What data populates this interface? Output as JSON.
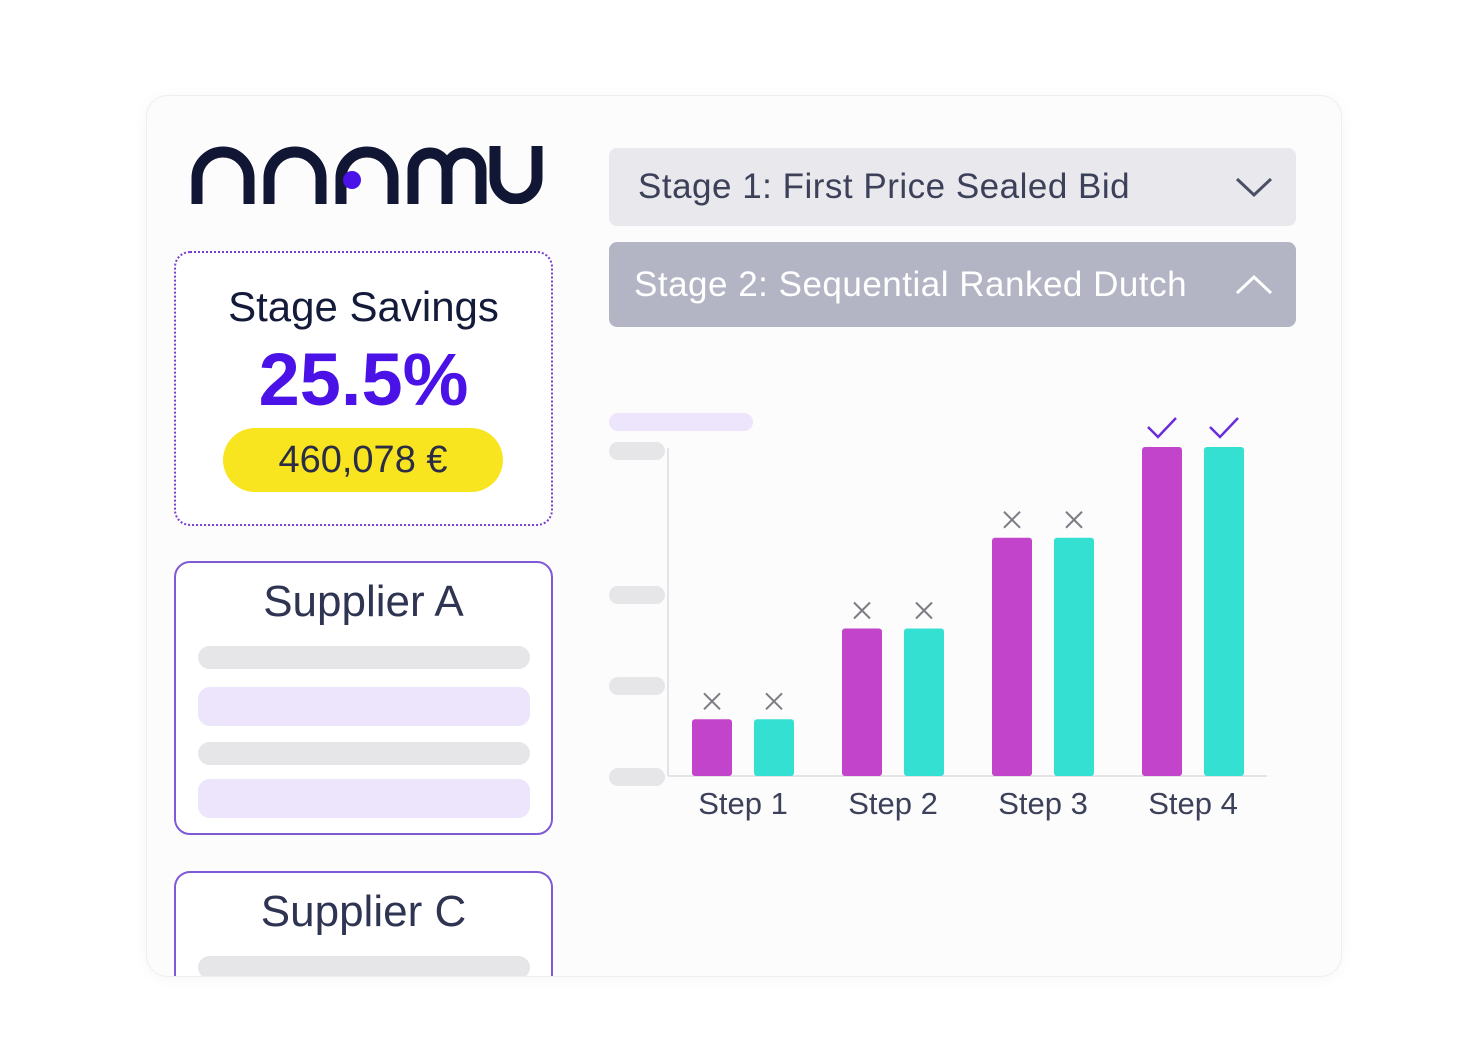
{
  "logo": {
    "text": "nnamu",
    "icon": "nnamu-logo",
    "accent_dot": "#4a12e6"
  },
  "savings": {
    "title": "Stage Savings",
    "percent": "25.5%",
    "amount": "460,078 €",
    "colors": {
      "percent": "#4a12e6",
      "pill": "#f9e51f",
      "border": "#7a3fd1"
    }
  },
  "suppliers": [
    {
      "name": "Supplier A"
    },
    {
      "name": "Supplier C"
    }
  ],
  "stages": [
    {
      "label": "Stage 1: First Price Sealed Bid",
      "state": "collapsed",
      "icon": "chevron-down-icon"
    },
    {
      "label": "Stage 2: Sequential Ranked Dutch",
      "state": "expanded",
      "icon": "chevron-up-icon"
    }
  ],
  "chart_data": {
    "type": "bar",
    "categories": [
      "Step 1",
      "Step 2",
      "Step 3",
      "Step 4"
    ],
    "series": [
      {
        "values": [
          1.0,
          2.6,
          4.2,
          5.8
        ],
        "color": "#c144cb"
      },
      {
        "values": [
          1.0,
          2.6,
          4.2,
          5.8
        ],
        "color": "#33e0d2"
      }
    ],
    "markers": [
      [
        "cross",
        "cross"
      ],
      [
        "cross",
        "cross"
      ],
      [
        "cross",
        "cross"
      ],
      [
        "check",
        "check"
      ]
    ],
    "marker_colors": {
      "cross": "#7c7c84",
      "check": "#6a2bdc"
    },
    "ylim": [
      0,
      5.8
    ],
    "grid": false,
    "tick_labels_hidden": true
  }
}
